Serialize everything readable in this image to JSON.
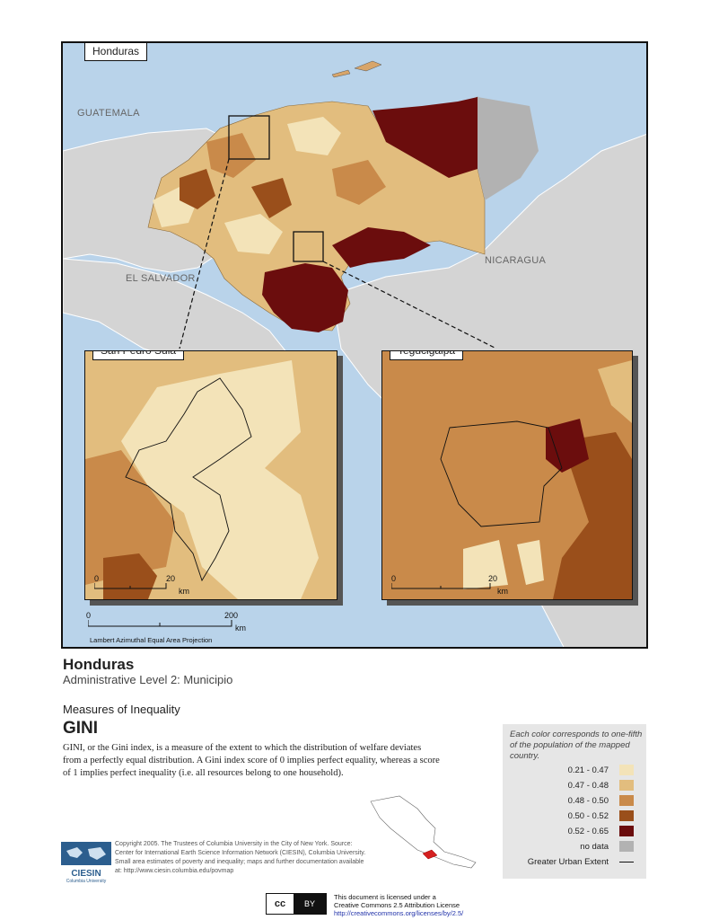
{
  "map": {
    "country_box_label": "Honduras",
    "country_labels": {
      "guatemala": "GUATEMALA",
      "el_salvador": "EL SALVADOR",
      "nicaragua": "NICARAGUA"
    },
    "inset_left": {
      "label": "San Pedro Sula",
      "scale_zero": "0",
      "scale_max": "20",
      "scale_unit": "km"
    },
    "inset_right": {
      "label": "Tegucigalpa",
      "scale_zero": "0",
      "scale_max": "20",
      "scale_unit": "km"
    },
    "main_scale": {
      "zero": "0",
      "max": "200",
      "unit": "km"
    },
    "projection": "Lambert Azimuthal Equal Area Projection"
  },
  "titles": {
    "name": "Honduras",
    "admin_level": "Administrative Level 2: Municipio",
    "measure_group": "Measures of Inequality",
    "measure_name": "GINI",
    "description": "GINI, or the Gini index, is a measure of the extent to which the distribution of welfare deviates from a perfectly equal distribution. A Gini index score of 0 implies perfect equality, whereas a score of 1 implies perfect inequality (i.e. all resources belong to one household)."
  },
  "legend": {
    "note": "Each color corresponds to one-fifth of the population of the mapped country.",
    "classes": [
      {
        "label": "0.21 - 0.47",
        "color": "#f3e3b8"
      },
      {
        "label": "0.47 - 0.48",
        "color": "#e2bd7e"
      },
      {
        "label": "0.48 - 0.50",
        "color": "#c98a4a"
      },
      {
        "label": "0.50 - 0.52",
        "color": "#9a4f1b"
      },
      {
        "label": "0.52 - 0.65",
        "color": "#6b0d0d"
      }
    ],
    "no_data": {
      "label": "no data",
      "color": "#b2b2b2"
    },
    "urban": {
      "label": "Greater Urban Extent"
    }
  },
  "credits": {
    "logo_text": "CIESIN",
    "logo_subtext": "Columbia University",
    "text": "Copyright 2005. The Trustees of Columbia University in the City of New York. Source: Center for International Earth Science Information Network (CIESIN), Columbia University. Small area estimates of poverty and inequality; maps and further documentation available at: http://www.ciesin.columbia.edu/povmap"
  },
  "license": {
    "line1": "This document is licensed under a",
    "line2": "Creative Commons 2.5 Attribution License",
    "link": "http://creativecommons.org/licenses/by/2.5/",
    "badge_cc": "cc",
    "badge_by": "BY"
  }
}
